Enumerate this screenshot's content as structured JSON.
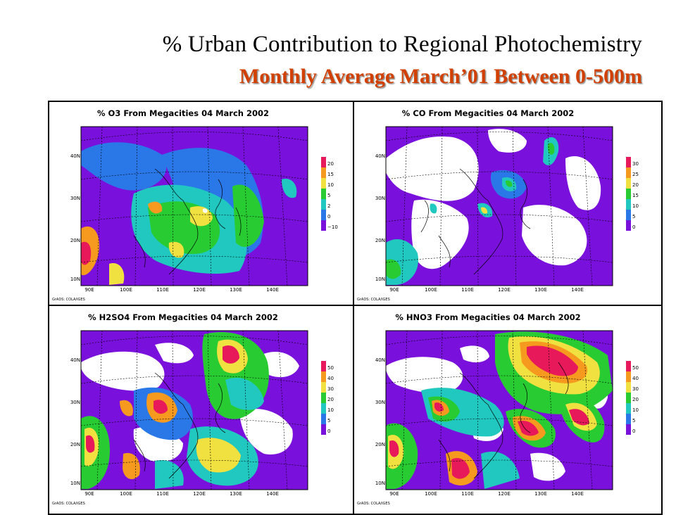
{
  "slide": {
    "title": "% Urban Contribution to Regional Photochemistry",
    "subtitle": "Monthly Average  March’01 Between 0-500m"
  },
  "panels": [
    {
      "title": "% O3 From Megacities 04 March 2002",
      "colorbar_labels": [
        "20",
        "15",
        "10",
        "5",
        "2",
        "0",
        "−10"
      ],
      "colorbar_colors": [
        "#e8195a",
        "#f59a1e",
        "#f0e040",
        "#28cc32",
        "#20c8c0",
        "#2a78e8",
        "#7a10dc"
      ],
      "credit": "GrADS: COLA/IGES"
    },
    {
      "title": "% CO From Megacities 04 March 2002",
      "colorbar_labels": [
        "30",
        "25",
        "20",
        "15",
        "10",
        "5",
        "0"
      ],
      "colorbar_colors": [
        "#e8195a",
        "#f59a1e",
        "#f0e040",
        "#28cc32",
        "#20c8c0",
        "#2a78e8",
        "#7a10dc"
      ],
      "credit": "GrADS: COLA/IGES"
    },
    {
      "title": "% H2SO4 From Megacities 04 March 2002",
      "colorbar_labels": [
        "50",
        "40",
        "30",
        "20",
        "10",
        "5",
        "0"
      ],
      "colorbar_colors": [
        "#e8195a",
        "#f59a1e",
        "#f0e040",
        "#28cc32",
        "#20c8c0",
        "#2a78e8",
        "#7a10dc"
      ],
      "credit": "GrADS: COLA/IGES"
    },
    {
      "title": "% HNO3 From Megacities 04 March 2002",
      "colorbar_labels": [
        "50",
        "40",
        "30",
        "20",
        "10",
        "5",
        "0"
      ],
      "colorbar_colors": [
        "#e8195a",
        "#f59a1e",
        "#f0e040",
        "#28cc32",
        "#20c8c0",
        "#2a78e8",
        "#7a10dc"
      ],
      "credit": "GrADS: COLA/IGES"
    }
  ],
  "map_axes": {
    "lat_labels": [
      "40N",
      "30N",
      "20N",
      "10N"
    ],
    "lon_labels": [
      "90E",
      "100E",
      "110E",
      "120E",
      "130E",
      "140E"
    ]
  },
  "colors": {
    "purple": "#7a10dc",
    "blue": "#2a78e8",
    "cyan": "#20c8c0",
    "green": "#28cc32",
    "yellow": "#f0e040",
    "orange": "#f59a1e",
    "red": "#e8195a",
    "title_orange": "#d24000"
  }
}
